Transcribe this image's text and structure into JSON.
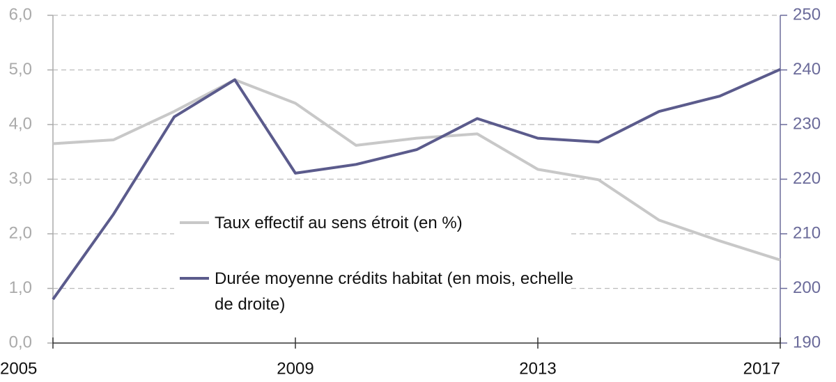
{
  "chart_data": {
    "type": "line",
    "x": [
      2005,
      2006,
      2007,
      2008,
      2009,
      2010,
      2011,
      2012,
      2013,
      2014,
      2015,
      2016,
      2017
    ],
    "xlim": [
      2005,
      2017
    ],
    "xticks": [
      2005,
      2009,
      2013,
      2017
    ],
    "ylim": [
      0,
      6
    ],
    "yticks": [
      {
        "value": 0,
        "label": "0,0"
      },
      {
        "value": 1,
        "label": "1,0"
      },
      {
        "value": 2,
        "label": "2,0"
      },
      {
        "value": 3,
        "label": "3,0"
      },
      {
        "value": 4,
        "label": "4,0"
      },
      {
        "value": 5,
        "label": "5,0"
      },
      {
        "value": 6,
        "label": "6,0"
      }
    ],
    "y2lim": [
      190,
      250
    ],
    "y2ticks": [
      190,
      200,
      210,
      220,
      230,
      240,
      250
    ],
    "grid": true,
    "series": [
      {
        "name": "Taux effectif au sens étroit (en %)",
        "color": "#c8c8c8",
        "values": [
          3.65,
          3.72,
          4.24,
          4.82,
          4.39,
          3.62,
          3.75,
          3.83,
          3.18,
          2.99,
          2.25,
          1.87,
          1.52
        ]
      },
      {
        "name": "Durée moyenne crédits habitat (en mois, echelle de droite)",
        "color": "#5b5b8c",
        "axis": "y2",
        "values": [
          198,
          213.6,
          231.4,
          238.2,
          221.1,
          222.7,
          225.4,
          231.1,
          227.5,
          226.8,
          232.4,
          235.2,
          240.1
        ]
      }
    ]
  }
}
